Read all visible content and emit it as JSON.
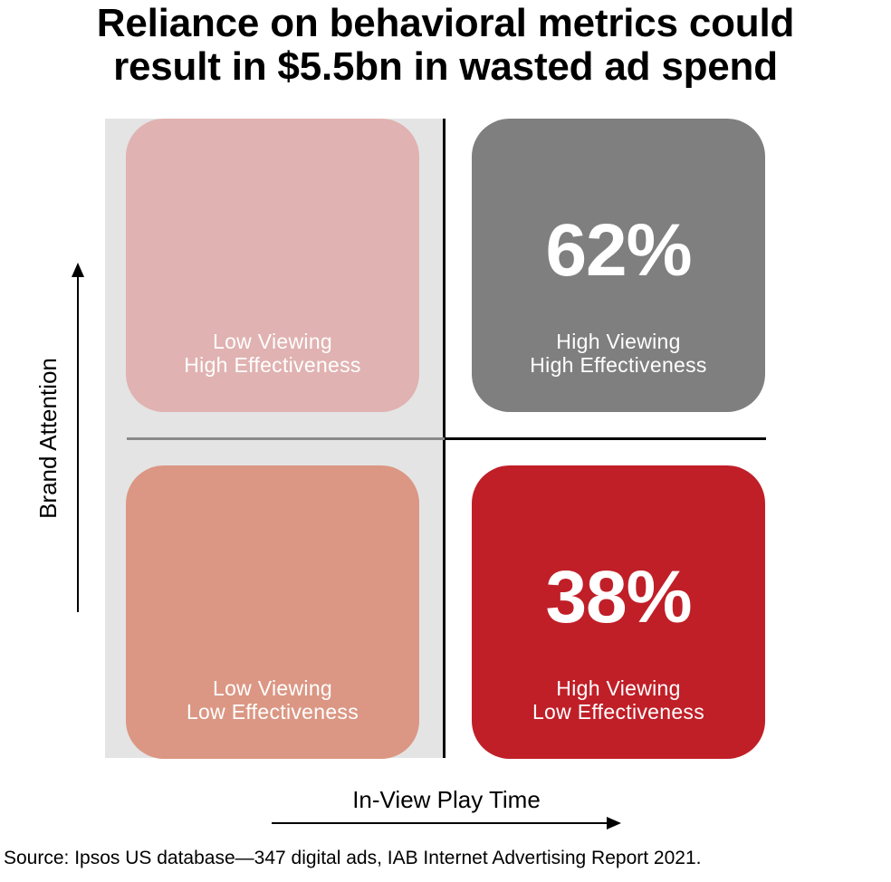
{
  "title": {
    "line1": "Reliance on behavioral metrics could",
    "line2": "result in $5.5bn in wasted ad spend"
  },
  "axes": {
    "y_label": "Brand Attention",
    "x_label": "In-View Play Time"
  },
  "quadrants": {
    "top_left": {
      "line1": "Low Viewing",
      "line2": "High Effectiveness",
      "percent": "",
      "color": "#e0b2b1"
    },
    "top_right": {
      "line1": "High Viewing",
      "line2": "High Effectiveness",
      "percent": "62%",
      "color": "#7f7f7f"
    },
    "bottom_left": {
      "line1": "Low Viewing",
      "line2": "Low Effectiveness",
      "percent": "",
      "color": "#db9784"
    },
    "bottom_right": {
      "line1": "High Viewing",
      "line2": "Low Effectiveness",
      "percent": "38%",
      "color": "#c01f28"
    }
  },
  "colors": {
    "shaded_region": "#e4e4e4",
    "grid_line": "#000000",
    "grey_line": "#8a8a8a"
  },
  "source": "Source: Ipsos US database—347 digital ads, IAB Internet Advertising Report 2021."
}
